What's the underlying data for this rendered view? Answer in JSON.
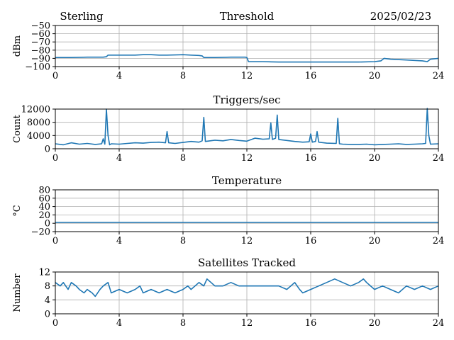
{
  "header": {
    "station": "Sterling",
    "date": "2025/02/23"
  },
  "chart_data": [
    {
      "type": "line",
      "title": "Threshold",
      "xlabel": "",
      "ylabel": "dBm",
      "xlim": [
        0,
        24
      ],
      "ylim": [
        -100,
        -50
      ],
      "xticks": [
        0,
        4,
        8,
        12,
        16,
        20,
        24
      ],
      "yticks": [
        -100,
        -90,
        -80,
        -70,
        -60,
        -50
      ],
      "grid": true,
      "series": [
        {
          "x": [
            0,
            0.5,
            1,
            2,
            3,
            3.2,
            3.3,
            4,
            5,
            5.5,
            6,
            6.5,
            7,
            8,
            8.5,
            9,
            9.2,
            9.3,
            10,
            11,
            11.9,
            12,
            12.1,
            13,
            14,
            15,
            16,
            17,
            18,
            19,
            20,
            20.4,
            20.6,
            21,
            22,
            23,
            23.3,
            23.5,
            24
          ],
          "y": [
            -89,
            -89,
            -89,
            -88.5,
            -88.5,
            -88,
            -86,
            -86,
            -86,
            -85.5,
            -85.5,
            -86,
            -86,
            -85.5,
            -86,
            -86.5,
            -87,
            -89,
            -89,
            -88.5,
            -88.5,
            -89,
            -94,
            -94,
            -94.5,
            -94.5,
            -94.5,
            -94.5,
            -94.5,
            -94.5,
            -94,
            -93,
            -90,
            -91,
            -92,
            -93,
            -94,
            -91,
            -90
          ]
        }
      ]
    },
    {
      "type": "line",
      "title": "Triggers/sec",
      "xlabel": "",
      "ylabel": "Count",
      "xlim": [
        0,
        24
      ],
      "ylim": [
        0,
        12000
      ],
      "xticks": [
        0,
        4,
        8,
        12,
        16,
        20,
        24
      ],
      "yticks": [
        0,
        4000,
        8000,
        12000
      ],
      "grid": true,
      "series": [
        {
          "x": [
            0,
            0.5,
            1,
            1.5,
            2,
            2.5,
            2.9,
            3.0,
            3.1,
            3.2,
            3.3,
            3.4,
            3.5,
            4,
            4.5,
            5,
            5.5,
            6,
            6.5,
            6.9,
            7.0,
            7.1,
            7.5,
            8,
            8.5,
            9,
            9.2,
            9.3,
            9.4,
            10,
            10.5,
            11,
            11.5,
            12,
            12.5,
            13,
            13.4,
            13.5,
            13.6,
            13.8,
            13.9,
            14,
            14.5,
            15,
            15.5,
            15.9,
            16.0,
            16.1,
            16.3,
            16.4,
            16.5,
            17,
            17.6,
            17.7,
            17.8,
            18,
            18.5,
            19,
            19.5,
            20,
            20.5,
            21,
            21.5,
            22,
            22.5,
            23,
            23.2,
            23.3,
            23.4,
            23.5,
            24
          ],
          "y": [
            1500,
            1200,
            1800,
            1400,
            1600,
            1300,
            1500,
            3000,
            1400,
            12000,
            4000,
            1200,
            1500,
            1400,
            1600,
            1800,
            1700,
            1900,
            2000,
            1800,
            5200,
            1800,
            1600,
            1900,
            2200,
            2000,
            2400,
            9500,
            2200,
            2600,
            2400,
            2800,
            2500,
            2300,
            3200,
            2900,
            3000,
            7800,
            2800,
            3200,
            10200,
            2800,
            2500,
            2200,
            2000,
            2100,
            4500,
            2000,
            2200,
            5200,
            2000,
            1700,
            1600,
            9200,
            1500,
            1400,
            1300,
            1300,
            1400,
            1200,
            1300,
            1400,
            1500,
            1300,
            1400,
            1500,
            1600,
            12200,
            4000,
            1400,
            1500
          ]
        }
      ]
    },
    {
      "type": "line",
      "title": "Temperature",
      "xlabel": "",
      "ylabel": "°C",
      "xlim": [
        0,
        24
      ],
      "ylim": [
        -20,
        80
      ],
      "xticks": [
        0,
        4,
        8,
        12,
        16,
        20,
        24
      ],
      "yticks": [
        -20,
        0,
        20,
        40,
        60,
        80
      ],
      "grid": true,
      "series": [
        {
          "x": [
            0,
            24
          ],
          "y": [
            2,
            2
          ]
        }
      ]
    },
    {
      "type": "line",
      "title": "Satellites Tracked",
      "xlabel": "",
      "ylabel": "Number",
      "xlim": [
        0,
        24
      ],
      "ylim": [
        0,
        12
      ],
      "xticks": [
        0,
        4,
        8,
        12,
        16,
        20,
        24
      ],
      "yticks": [
        0,
        4,
        8,
        12
      ],
      "grid": true,
      "series": [
        {
          "x": [
            0,
            0.3,
            0.5,
            0.8,
            1,
            1.3,
            1.5,
            1.8,
            2,
            2.3,
            2.5,
            2.8,
            3,
            3.3,
            3.5,
            4,
            4.5,
            5,
            5.3,
            5.5,
            6,
            6.5,
            7,
            7.5,
            8,
            8.3,
            8.5,
            9,
            9.3,
            9.5,
            10,
            10.5,
            11,
            11.5,
            12,
            12.5,
            13,
            13.5,
            14,
            14.5,
            15,
            15.3,
            15.5,
            16,
            16.5,
            17,
            17.5,
            18,
            18.5,
            19,
            19.3,
            19.5,
            20,
            20.5,
            21,
            21.5,
            22,
            22.5,
            23,
            23.5,
            24
          ],
          "y": [
            9,
            8,
            9,
            7,
            9,
            8,
            7,
            6,
            7,
            6,
            5,
            7,
            8,
            9,
            6,
            7,
            6,
            7,
            8,
            6,
            7,
            6,
            7,
            6,
            7,
            8,
            7,
            9,
            8,
            10,
            8,
            8,
            9,
            8,
            8,
            8,
            8,
            8,
            8,
            7,
            9,
            7,
            6,
            7,
            8,
            9,
            10,
            9,
            8,
            9,
            10,
            9,
            7,
            8,
            7,
            6,
            8,
            7,
            8,
            7,
            8
          ]
        }
      ]
    }
  ]
}
